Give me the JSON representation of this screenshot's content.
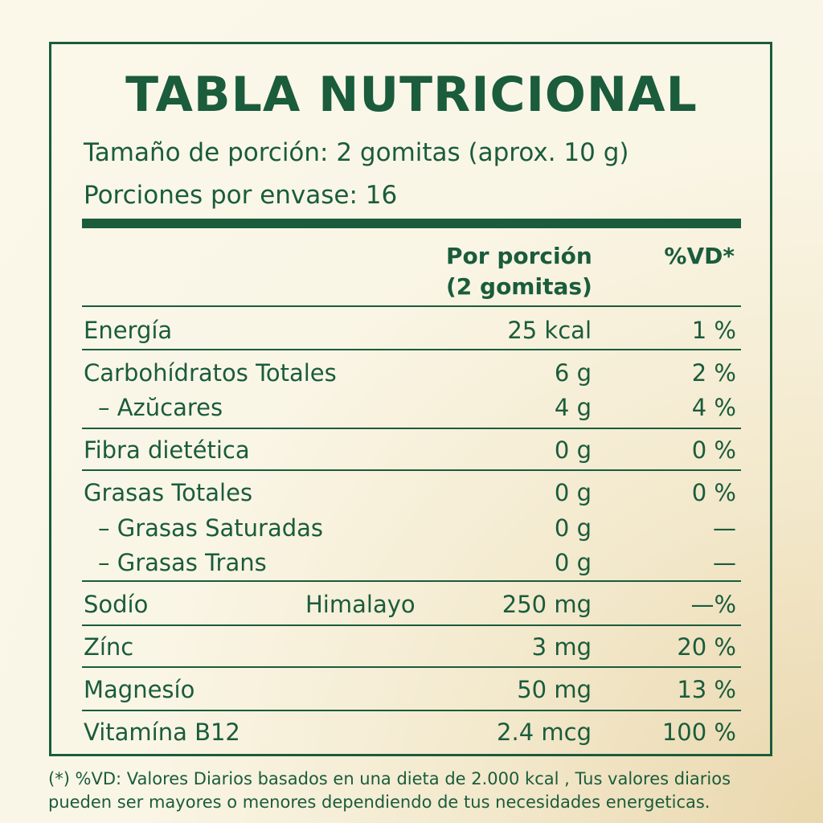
{
  "title": "TABLA NUTRICIONAL",
  "serving_size": "Tamaño de porción: 2 gomitas (aprox. 10 g)",
  "servings_per_container": "Porciones por envase: 16",
  "columns": {
    "portion_line1": "Por porción",
    "portion_line2": "(2 gomitas)",
    "dv": "%VD*"
  },
  "rows": [
    {
      "name": "Energía",
      "amount": "25 kcal",
      "dv": "1 %"
    },
    {
      "name": "Carbohídratos Totales",
      "amount": "6 g",
      "dv": "2 %"
    },
    {
      "name": "– Azŭcares",
      "amount": "4 g",
      "dv": "4 %"
    },
    {
      "name": "Fibra dietética",
      "amount": "0 g",
      "dv": "0 %"
    },
    {
      "name": "Grasas Totales",
      "amount": "0 g",
      "dv": "0 %"
    },
    {
      "name": "– Grasas Saturadas",
      "amount": "0 g",
      "dv": "—"
    },
    {
      "name": "– Grasas Trans",
      "amount": "0 g",
      "dv": "—"
    },
    {
      "name": "Sodío",
      "extra": "Himalayo",
      "amount": "250 mg",
      "dv": "—%"
    },
    {
      "name": "Zínc",
      "amount": "3 mg",
      "dv": "20 %"
    },
    {
      "name": "Magnesío",
      "amount": "50 mg",
      "dv": "13 %"
    },
    {
      "name": "Vitamína B12",
      "amount": "2.4 mcg",
      "dv": "100 %"
    }
  ],
  "footnote": "(*) %VD: Valores Diarios basados en una dieta de 2.000 kcal , Tus valores diarios pueden ser mayores o menores dependiendo de tus necesidades energeticas.",
  "colors": {
    "text": "#1a5c3c",
    "background": "#fbf8ea"
  }
}
